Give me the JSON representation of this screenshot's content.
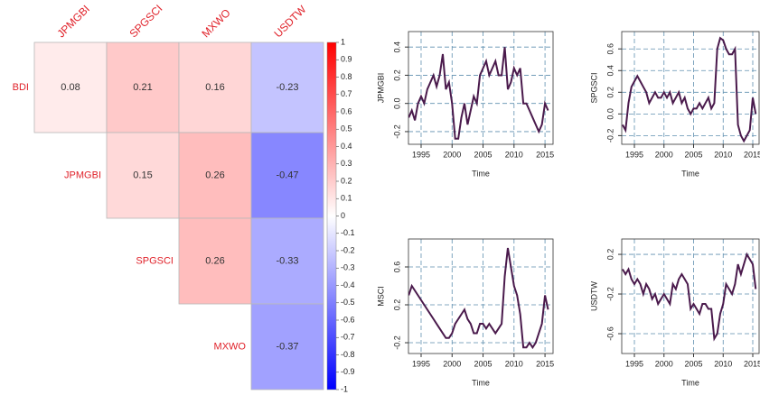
{
  "chart_data": [
    {
      "type": "heatmap",
      "columns": [
        "JPMGBI",
        "SPGSCI",
        "MXWO",
        "USDTW"
      ],
      "rows": [
        "BDI",
        "JPMGBI",
        "SPGSCI",
        "MXWO"
      ],
      "values": [
        [
          0.08,
          0.21,
          0.16,
          -0.23
        ],
        [
          null,
          0.15,
          0.26,
          -0.47
        ],
        [
          null,
          null,
          0.26,
          -0.33
        ],
        [
          null,
          null,
          null,
          -0.37
        ]
      ],
      "colors": [
        "#0000FF",
        "#FFFFFF",
        "#FF0000"
      ],
      "label_color": "#E0222A",
      "zlim": [
        -1,
        1
      ],
      "zticks": [
        1,
        0.9,
        0.8,
        0.7,
        0.6,
        0.5,
        0.4,
        0.3,
        0.2,
        0.1,
        0,
        -0.1,
        -0.2,
        -0.3,
        -0.4,
        -0.5,
        -0.6,
        -0.7,
        -0.8,
        -0.9,
        -1
      ]
    },
    {
      "type": "line",
      "x_label": "Time",
      "y_label": "JPMGBI",
      "color": "#4A1A4C",
      "grid": true,
      "x": [
        1993,
        1993.5,
        1994,
        1994.5,
        1995,
        1995.5,
        1996,
        1996.5,
        1997,
        1997.5,
        1998,
        1998.5,
        1999,
        1999.5,
        2000,
        2000.5,
        2001,
        2001.5,
        2002,
        2002.5,
        2003,
        2003.5,
        2004,
        2004.5,
        2005,
        2005.5,
        2006,
        2006.5,
        2007,
        2007.5,
        2008,
        2008.5,
        2009,
        2009.5,
        2010,
        2010.5,
        2011,
        2011.5,
        2012,
        2012.5,
        2013,
        2013.5,
        2014,
        2014.5,
        2015,
        2015.5
      ],
      "values": [
        -0.1,
        -0.05,
        -0.12,
        0.0,
        0.05,
        0.0,
        0.1,
        0.15,
        0.2,
        0.12,
        0.2,
        0.35,
        0.1,
        0.15,
        0.0,
        -0.25,
        -0.25,
        -0.1,
        0.0,
        -0.15,
        -0.05,
        0.05,
        0.0,
        0.2,
        0.25,
        0.3,
        0.2,
        0.25,
        0.3,
        0.2,
        0.2,
        0.4,
        0.1,
        0.15,
        0.25,
        0.2,
        0.25,
        0.0,
        0.0,
        -0.05,
        -0.1,
        -0.15,
        -0.2,
        -0.15,
        0.0,
        -0.05
      ],
      "xlim": [
        1992.96,
        2016.3
      ],
      "xticks": [
        1995,
        2000,
        2005,
        2010,
        2015
      ],
      "ylim": [
        -0.29,
        0.51
      ],
      "yticks": [
        -0.2,
        {
          "value": 0,
          "label": "0.0"
        },
        0.2,
        0.4
      ]
    },
    {
      "type": "line",
      "x_label": "Time",
      "y_label": "SPGSCI",
      "color": "#4A1A4C",
      "grid": true,
      "x": [
        1993,
        1993.5,
        1994,
        1994.5,
        1995,
        1995.5,
        1996,
        1996.5,
        1997,
        1997.5,
        1998,
        1998.5,
        1999,
        1999.5,
        2000,
        2000.5,
        2001,
        2001.5,
        2002,
        2002.5,
        2003,
        2003.5,
        2004,
        2004.5,
        2005,
        2005.5,
        2006,
        2006.5,
        2007,
        2007.5,
        2008,
        2008.5,
        2009,
        2009.5,
        2010,
        2010.5,
        2011,
        2011.5,
        2012,
        2012.5,
        2013,
        2013.5,
        2014,
        2014.5,
        2015,
        2015.5
      ],
      "values": [
        -0.1,
        -0.15,
        0.1,
        0.25,
        0.3,
        0.35,
        0.3,
        0.25,
        0.2,
        0.1,
        0.15,
        0.2,
        0.15,
        0.15,
        0.2,
        0.15,
        0.2,
        0.1,
        0.15,
        0.2,
        0.1,
        0.15,
        0.05,
        0.0,
        0.05,
        0.05,
        0.1,
        0.05,
        0.1,
        0.15,
        0.05,
        0.1,
        0.6,
        0.7,
        0.68,
        0.6,
        0.55,
        0.55,
        0.6,
        -0.1,
        -0.2,
        -0.25,
        -0.2,
        -0.15,
        0.15,
        0.0
      ],
      "xlim": [
        1992.86,
        2016.07
      ],
      "xticks": [
        1995,
        2000,
        2005,
        2010,
        2015
      ],
      "ylim": [
        -0.28,
        0.76
      ],
      "yticks": [
        -0.2,
        {
          "value": 0,
          "label": "0.0"
        },
        0.2,
        0.4,
        0.6
      ]
    },
    {
      "type": "line",
      "x_label": "Time",
      "y_label": "MSCI",
      "color": "#4A1A4C",
      "grid": true,
      "x": [
        1993,
        1993.5,
        1994,
        1994.5,
        1995,
        1995.5,
        1996,
        1996.5,
        1997,
        1997.5,
        1998,
        1998.5,
        1999,
        1999.5,
        2000,
        2000.5,
        2001,
        2001.5,
        2002,
        2002.5,
        2003,
        2003.5,
        2004,
        2004.5,
        2005,
        2005.5,
        2006,
        2006.5,
        2007,
        2007.5,
        2008,
        2008.5,
        2009,
        2009.5,
        2010,
        2010.5,
        2011,
        2011.5,
        2012,
        2012.5,
        2013,
        2013.5,
        2014,
        2014.5,
        2015,
        2015.5
      ],
      "values": [
        0.3,
        0.4,
        0.35,
        0.3,
        0.25,
        0.2,
        0.15,
        0.1,
        0.05,
        0.0,
        -0.05,
        -0.1,
        -0.15,
        -0.15,
        -0.1,
        0.0,
        0.05,
        0.1,
        0.15,
        0.05,
        0.0,
        -0.1,
        -0.1,
        0.0,
        0.0,
        -0.05,
        0.0,
        -0.05,
        -0.1,
        -0.05,
        0.0,
        0.5,
        0.8,
        0.6,
        0.4,
        0.3,
        0.1,
        -0.25,
        -0.25,
        -0.2,
        -0.25,
        -0.2,
        -0.1,
        0.0,
        0.3,
        0.15
      ],
      "xlim": [
        1992.96,
        2016.3
      ],
      "xticks": [
        1995,
        2000,
        2005,
        2010,
        2015
      ],
      "ylim": [
        -0.314,
        0.895
      ],
      "yticks": [
        -0.2,
        0.2,
        0.6
      ]
    },
    {
      "type": "line",
      "x_label": "Time",
      "y_label": "USDTW",
      "color": "#4A1A4C",
      "grid": true,
      "x": [
        1993,
        1993.5,
        1994,
        1994.5,
        1995,
        1995.5,
        1996,
        1996.5,
        1997,
        1997.5,
        1998,
        1998.5,
        1999,
        1999.5,
        2000,
        2000.5,
        2001,
        2001.5,
        2002,
        2002.5,
        2003,
        2003.5,
        2004,
        2004.5,
        2005,
        2005.5,
        2006,
        2006.5,
        2007,
        2007.5,
        2008,
        2008.5,
        2009,
        2009.5,
        2010,
        2010.5,
        2011,
        2011.5,
        2012,
        2012.5,
        2013,
        2013.5,
        2014,
        2014.5,
        2015,
        2015.5
      ],
      "values": [
        0.05,
        0.0,
        0.05,
        -0.05,
        -0.1,
        -0.05,
        -0.1,
        -0.2,
        -0.1,
        -0.15,
        -0.25,
        -0.2,
        -0.3,
        -0.25,
        -0.2,
        -0.25,
        -0.3,
        -0.1,
        -0.15,
        -0.05,
        0.0,
        -0.05,
        -0.1,
        -0.35,
        -0.3,
        -0.35,
        -0.4,
        -0.3,
        -0.3,
        -0.35,
        -0.35,
        -0.65,
        -0.6,
        -0.4,
        -0.3,
        -0.1,
        -0.15,
        -0.2,
        -0.1,
        0.1,
        0.0,
        0.1,
        0.2,
        0.15,
        0.1,
        -0.15
      ],
      "xlim": [
        1992.86,
        2016.07
      ],
      "xticks": [
        1995,
        2000,
        2005,
        2010,
        2015
      ],
      "ylim": [
        -0.8,
        0.355
      ],
      "yticks": [
        -0.6,
        -0.2,
        0.2
      ]
    }
  ]
}
